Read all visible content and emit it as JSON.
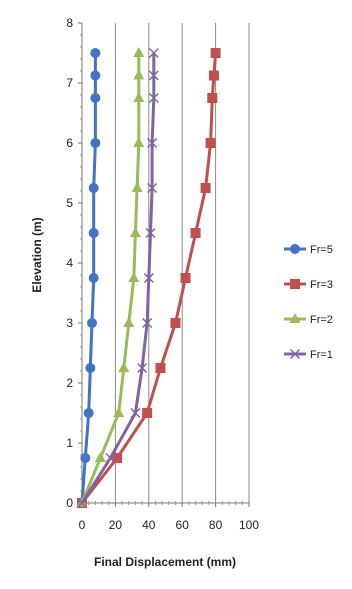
{
  "chart_data": {
    "type": "line",
    "xlabel": "Final Displacement (mm)",
    "ylabel": "Elevation (m)",
    "xlim": [
      0,
      100
    ],
    "ylim": [
      0,
      8
    ],
    "x_ticks": [
      0,
      20,
      40,
      60,
      80,
      100
    ],
    "y_ticks": [
      0,
      1,
      2,
      3,
      4,
      5,
      6,
      7,
      8
    ],
    "grid": "vertical",
    "legend_position": "right",
    "series": [
      {
        "name": "Fr=5",
        "color": "#4472c4",
        "marker": "circle",
        "points": [
          [
            0,
            0
          ],
          [
            2,
            0.75
          ],
          [
            4,
            1.5
          ],
          [
            5,
            2.25
          ],
          [
            6,
            3
          ],
          [
            7,
            3.75
          ],
          [
            7,
            4.5
          ],
          [
            7,
            5.25
          ],
          [
            8,
            6
          ],
          [
            8,
            6.75
          ],
          [
            8,
            7.125
          ],
          [
            8,
            7.5
          ]
        ]
      },
      {
        "name": "Fr=3",
        "color": "#c0504d",
        "marker": "square",
        "points": [
          [
            0,
            0
          ],
          [
            21,
            0.75
          ],
          [
            39,
            1.5
          ],
          [
            47,
            2.25
          ],
          [
            56,
            3
          ],
          [
            62,
            3.75
          ],
          [
            68,
            4.5
          ],
          [
            74,
            5.25
          ],
          [
            77,
            6
          ],
          [
            78,
            6.75
          ],
          [
            79,
            7.125
          ],
          [
            80,
            7.5
          ]
        ]
      },
      {
        "name": "Fr=2",
        "color": "#9bbb59",
        "marker": "triangle",
        "points": [
          [
            0,
            0
          ],
          [
            11,
            0.75
          ],
          [
            22,
            1.5
          ],
          [
            25,
            2.25
          ],
          [
            28,
            3
          ],
          [
            31,
            3.75
          ],
          [
            32,
            4.5
          ],
          [
            33,
            5.25
          ],
          [
            34,
            6
          ],
          [
            34,
            6.75
          ],
          [
            34,
            7.125
          ],
          [
            34,
            7.5
          ]
        ]
      },
      {
        "name": "Fr=1",
        "color": "#8064a2",
        "marker": "x",
        "points": [
          [
            0,
            0
          ],
          [
            17,
            0.75
          ],
          [
            32,
            1.5
          ],
          [
            36,
            2.25
          ],
          [
            39,
            3
          ],
          [
            40,
            3.75
          ],
          [
            41,
            4.5
          ],
          [
            42,
            5.25
          ],
          [
            42,
            6
          ],
          [
            43,
            6.75
          ],
          [
            43,
            7.125
          ],
          [
            43,
            7.5
          ]
        ]
      }
    ]
  }
}
